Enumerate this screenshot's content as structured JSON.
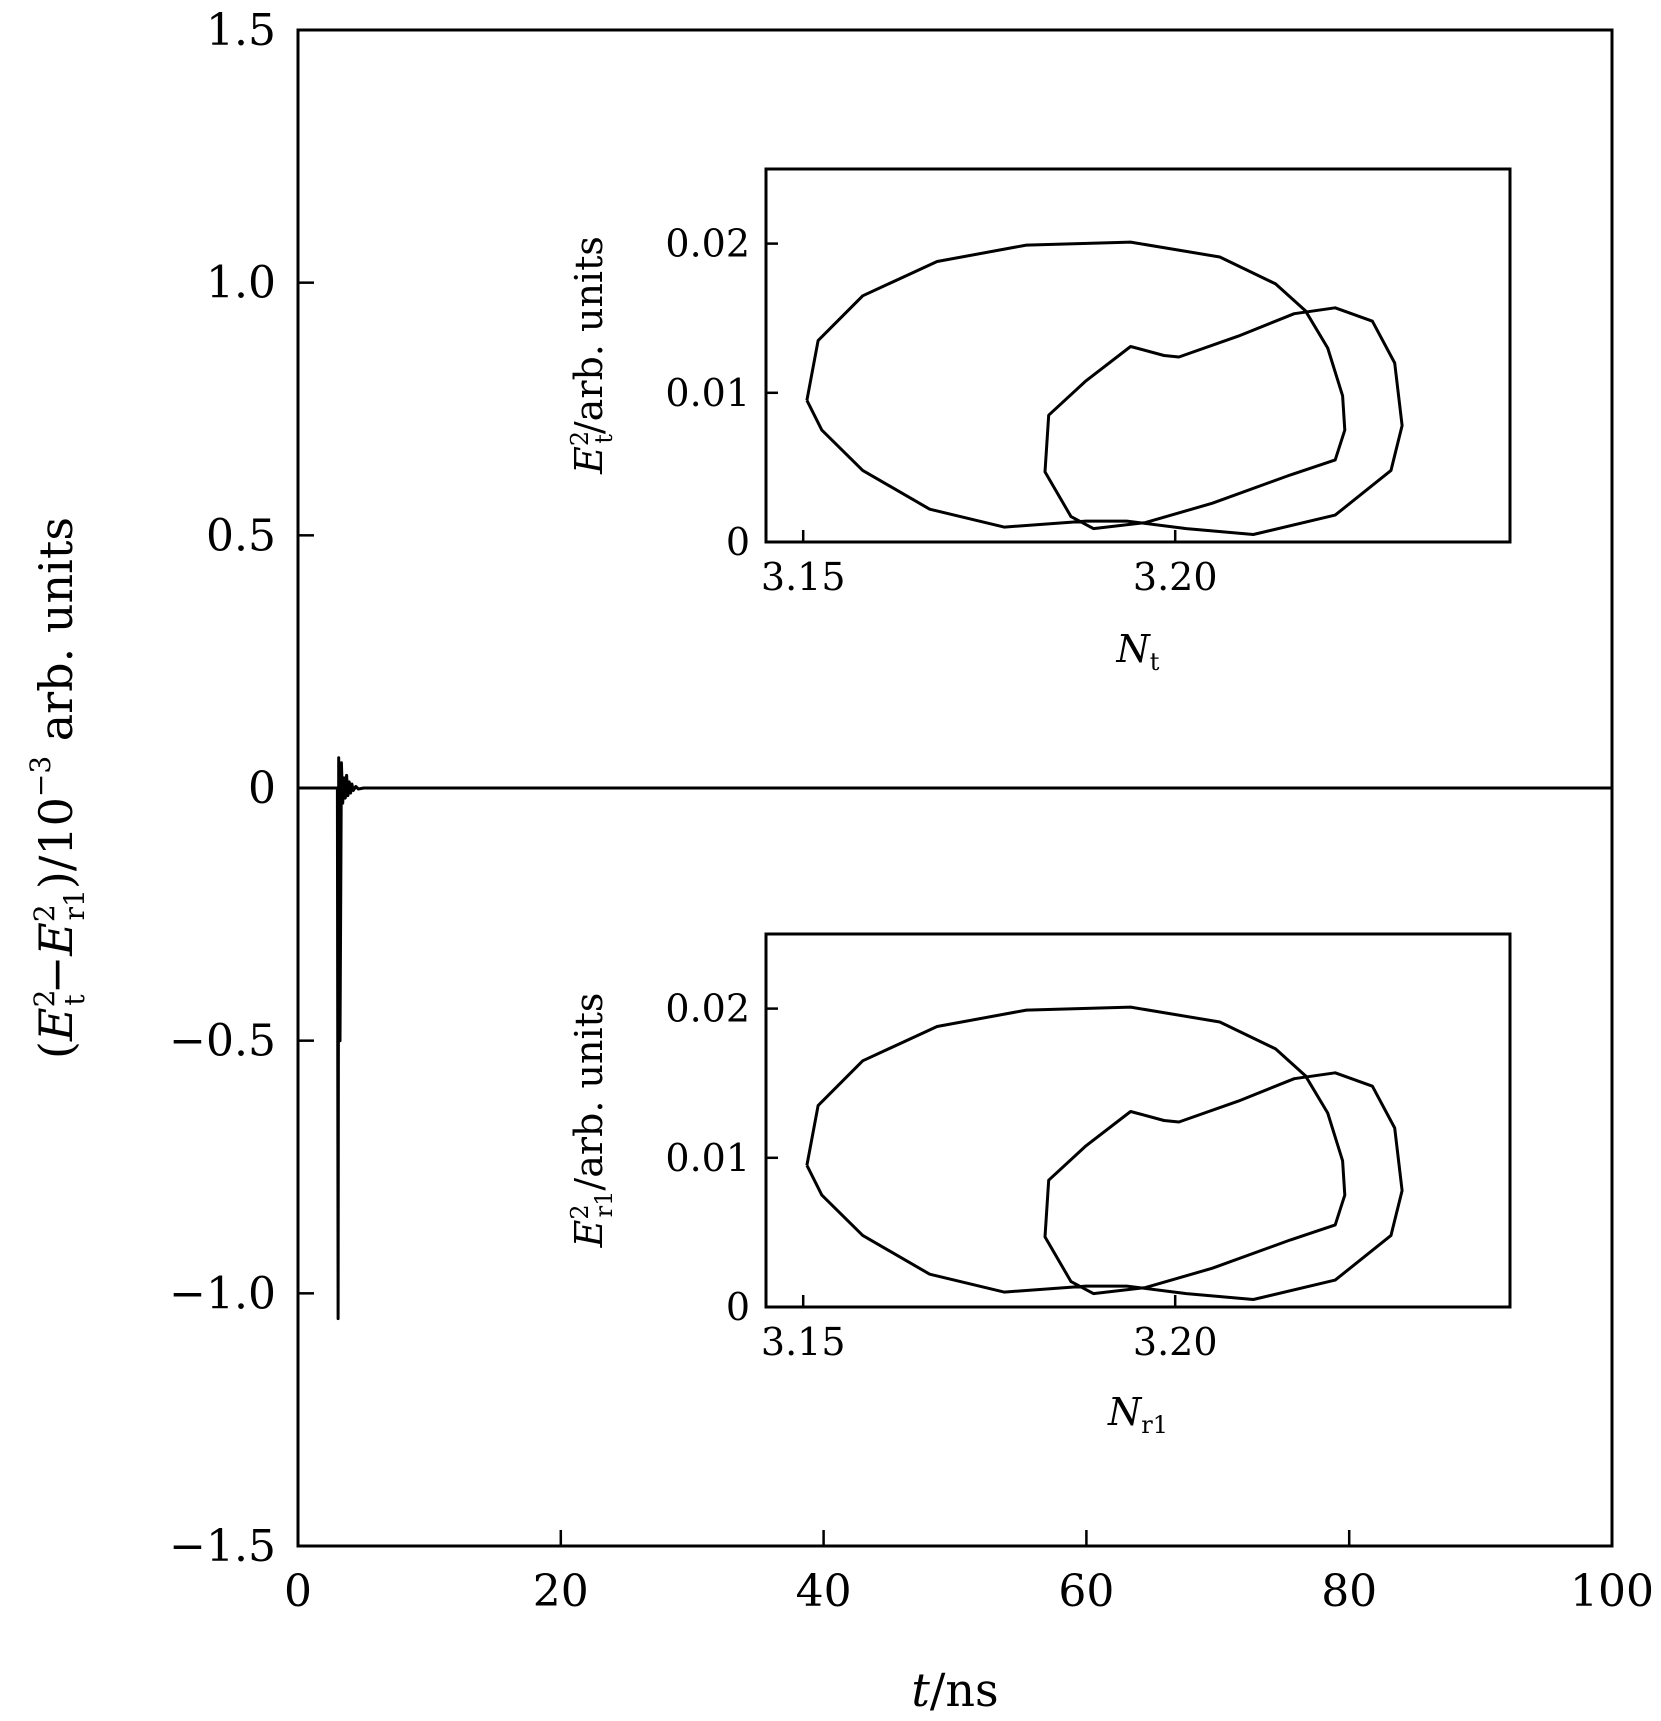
{
  "chart_data": {
    "type": "line",
    "xlabel": "t/ns",
    "ylabel": "(E_t^2 − E_r1^2)/10^−3 arb. units",
    "xlim": [
      0,
      100
    ],
    "ylim": [
      -1.5,
      1.5
    ],
    "xticks": [
      0,
      20,
      40,
      60,
      80,
      100
    ],
    "xtick_labels": [
      "0",
      "20",
      "40",
      "60",
      "80",
      "100"
    ],
    "yticks": [
      -1.5,
      -1.0,
      -0.5,
      0,
      0.5,
      1.0,
      1.5
    ],
    "ytick_labels": [
      "−1.5",
      "−1.0",
      "−0.5",
      "0",
      "0.5",
      "1.0",
      "1.5"
    ],
    "grid": false,
    "series": [
      {
        "color": "#000000",
        "x": [
          0,
          3.0,
          3.05,
          3.1,
          3.2,
          3.3,
          3.4,
          3.5,
          3.6,
          3.7,
          3.8,
          3.9,
          4.0,
          4.1,
          4.2,
          4.4,
          4.6,
          5,
          10,
          20,
          40,
          60,
          80,
          100
        ],
        "y": [
          0,
          0,
          -1.05,
          0.06,
          -0.5,
          0.05,
          -0.03,
          0.02,
          -0.02,
          0.025,
          -0.015,
          0.012,
          -0.01,
          0.008,
          -0.005,
          0.003,
          -0.002,
          0,
          0,
          0,
          0,
          0,
          0,
          0
        ]
      }
    ],
    "insets": [
      {
        "type": "line",
        "xlabel": "N_t",
        "ylabel": "E_t^2/arb. units",
        "xlim": [
          3.145,
          3.245
        ],
        "ylim": [
          0,
          0.025
        ],
        "xticks": [
          3.15,
          3.2
        ],
        "xtick_labels": [
          "3.15",
          "3.20"
        ],
        "yticks": [
          0,
          0.01,
          0.02
        ],
        "ytick_labels": [
          "0",
          "0.01",
          "0.02"
        ],
        "series": [
          {
            "color": "#000000",
            "x": [
              3.1505,
              3.152,
              3.158,
              3.168,
              3.18,
              3.194,
              3.206,
              3.2135,
              3.2175,
              3.2205,
              3.2225,
              3.2228,
              3.2215,
              3.2155,
              3.205,
              3.196,
              3.189,
              3.186,
              3.1825,
              3.183,
              3.188,
              3.194,
              3.1985,
              3.2005,
              3.2085,
              3.216,
              3.2215,
              3.2265,
              3.2295,
              3.2305,
              3.229,
              3.2215,
              3.2105,
              3.2015,
              3.1935,
              3.188,
              3.177,
              3.167,
              3.158,
              3.1525,
              3.1505
            ],
            "y": [
              0.0095,
              0.0135,
              0.0165,
              0.0188,
              0.0199,
              0.0201,
              0.0191,
              0.0173,
              0.0155,
              0.013,
              0.0098,
              0.0075,
              0.0055,
              0.0045,
              0.0026,
              0.0013,
              0.0009,
              0.0017,
              0.0047,
              0.0085,
              0.0108,
              0.0131,
              0.0125,
              0.0124,
              0.0138,
              0.0153,
              0.0157,
              0.0148,
              0.012,
              0.0078,
              0.0048,
              0.0018,
              0.0005,
              0.0009,
              0.0014,
              0.0014,
              0.001,
              0.0022,
              0.0048,
              0.0075,
              0.0095
            ]
          }
        ]
      },
      {
        "type": "line",
        "xlabel": "N_r1",
        "ylabel": "E_r1^2/arb. units",
        "xlim": [
          3.145,
          3.245
        ],
        "ylim": [
          0,
          0.025
        ],
        "xticks": [
          3.15,
          3.2
        ],
        "xtick_labels": [
          "3.15",
          "3.20"
        ],
        "yticks": [
          0,
          0.01,
          0.02
        ],
        "ytick_labels": [
          "0",
          "0.01",
          "0.02"
        ],
        "series": [
          {
            "color": "#000000",
            "x": [
              3.1505,
              3.152,
              3.158,
              3.168,
              3.18,
              3.194,
              3.206,
              3.2135,
              3.2175,
              3.2205,
              3.2225,
              3.2228,
              3.2215,
              3.2155,
              3.205,
              3.196,
              3.189,
              3.186,
              3.1825,
              3.183,
              3.188,
              3.194,
              3.1985,
              3.2005,
              3.2085,
              3.216,
              3.2215,
              3.2265,
              3.2295,
              3.2305,
              3.229,
              3.2215,
              3.2105,
              3.2015,
              3.1935,
              3.188,
              3.177,
              3.167,
              3.158,
              3.1525,
              3.1505
            ],
            "y": [
              0.0095,
              0.0135,
              0.0165,
              0.0188,
              0.0199,
              0.0201,
              0.0191,
              0.0173,
              0.0155,
              0.013,
              0.0098,
              0.0075,
              0.0055,
              0.0045,
              0.0026,
              0.0013,
              0.0009,
              0.0017,
              0.0047,
              0.0085,
              0.0108,
              0.0131,
              0.0125,
              0.0124,
              0.0138,
              0.0153,
              0.0157,
              0.0148,
              0.012,
              0.0078,
              0.0048,
              0.0018,
              0.0005,
              0.0009,
              0.0014,
              0.0014,
              0.001,
              0.0022,
              0.0048,
              0.0075,
              0.0095
            ]
          }
        ]
      }
    ]
  }
}
